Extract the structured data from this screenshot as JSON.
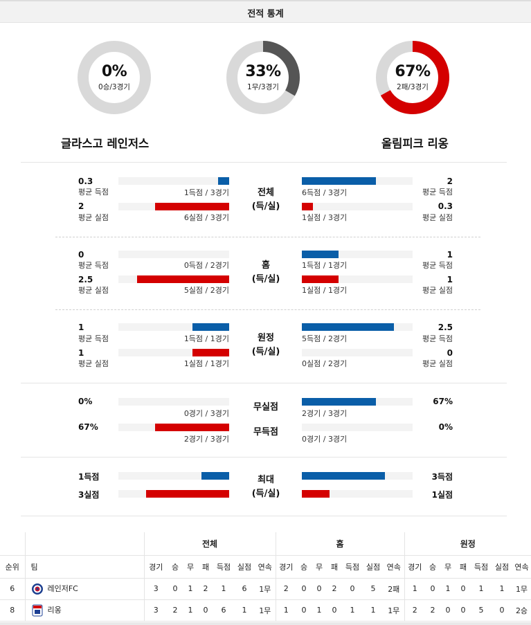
{
  "header": {
    "title": "전적 통계"
  },
  "donuts": [
    {
      "pct": "0%",
      "sub": "0승/3경기",
      "value": 0,
      "color": "#555555"
    },
    {
      "pct": "33%",
      "sub": "1무/3경기",
      "value": 0.333,
      "color": "#555555"
    },
    {
      "pct": "67%",
      "sub": "2패/3경기",
      "value": 0.667,
      "color": "#d40000"
    }
  ],
  "teams": {
    "home": "글라스고 레인저스",
    "away": "올림피크 리옹"
  },
  "colors": {
    "blue": "#0a5ea8",
    "red": "#d40000",
    "track": "#f3f3f3",
    "ring": "#d9d9d9"
  },
  "stats": {
    "overall": {
      "mid": [
        "전체",
        "(득/실)"
      ],
      "left": [
        {
          "val": "0.3",
          "sub": "평균 득점",
          "count": "1득점 / 3경기",
          "fill": 0.1,
          "color": "blue"
        },
        {
          "val": "2",
          "sub": "평균 실점",
          "count": "6실점 / 3경기",
          "fill": 0.67,
          "color": "red"
        }
      ],
      "right": [
        {
          "val": "2",
          "sub": "평균 득점",
          "count": "6득점 / 3경기",
          "fill": 0.67,
          "color": "blue"
        },
        {
          "val": "0.3",
          "sub": "평균 실점",
          "count": "1실점 / 3경기",
          "fill": 0.1,
          "color": "red"
        }
      ]
    },
    "home": {
      "mid": [
        "홈",
        "(득/실)"
      ],
      "left": [
        {
          "val": "0",
          "sub": "평균 득점",
          "count": "0득점 / 2경기",
          "fill": 0,
          "color": "blue"
        },
        {
          "val": "2.5",
          "sub": "평균 실점",
          "count": "5실점 / 2경기",
          "fill": 0.83,
          "color": "red"
        }
      ],
      "right": [
        {
          "val": "1",
          "sub": "평균 득점",
          "count": "1득점 / 1경기",
          "fill": 0.33,
          "color": "blue"
        },
        {
          "val": "1",
          "sub": "평균 실점",
          "count": "1실점 / 1경기",
          "fill": 0.33,
          "color": "red"
        }
      ]
    },
    "away": {
      "mid": [
        "원정",
        "(득/실)"
      ],
      "left": [
        {
          "val": "1",
          "sub": "평균 득점",
          "count": "1득점 / 1경기",
          "fill": 0.33,
          "color": "blue"
        },
        {
          "val": "1",
          "sub": "평균 실점",
          "count": "1실점 / 1경기",
          "fill": 0.33,
          "color": "red"
        }
      ],
      "right": [
        {
          "val": "2.5",
          "sub": "평균 득점",
          "count": "5득점 / 2경기",
          "fill": 0.83,
          "color": "blue"
        },
        {
          "val": "0",
          "sub": "평균 실점",
          "count": "0실점 / 2경기",
          "fill": 0,
          "color": "red"
        }
      ]
    },
    "clean": {
      "left": [
        {
          "val": "0%",
          "count": "0경기 / 3경기",
          "fill": 0,
          "color": "blue"
        },
        {
          "val": "67%",
          "count": "2경기 / 3경기",
          "fill": 0.67,
          "color": "red"
        }
      ],
      "right": [
        {
          "val": "67%",
          "count": "2경기 / 3경기",
          "fill": 0.67,
          "color": "blue"
        },
        {
          "val": "0%",
          "count": "0경기 / 3경기",
          "fill": 0,
          "color": "red"
        }
      ],
      "mid_top": "무실점",
      "mid_bottom": "무득점"
    },
    "max": {
      "mid": [
        "최대",
        "(득/실)"
      ],
      "left": [
        {
          "val": "1득점",
          "fill": 0.25,
          "color": "blue"
        },
        {
          "val": "3실점",
          "fill": 0.75,
          "color": "red"
        }
      ],
      "right": [
        {
          "val": "3득점",
          "fill": 0.75,
          "color": "blue"
        },
        {
          "val": "1실점",
          "fill": 0.25,
          "color": "red"
        }
      ]
    }
  },
  "standings": {
    "groups": [
      "전체",
      "홈",
      "원정"
    ],
    "head_rank": "순위",
    "head_team": "팀",
    "cols": [
      "경기",
      "승",
      "무",
      "패",
      "득점",
      "실점",
      "연속"
    ],
    "rows": [
      {
        "rank": "6",
        "team": "레인저FC",
        "logo": "rangers-crest-icon",
        "all": [
          "3",
          "0",
          "1",
          "2",
          "1",
          "6",
          "1무"
        ],
        "home": [
          "2",
          "0",
          "0",
          "2",
          "0",
          "5",
          "2패"
        ],
        "away": [
          "1",
          "0",
          "1",
          "0",
          "1",
          "1",
          "1무"
        ]
      },
      {
        "rank": "8",
        "team": "리옹",
        "logo": "lyon-crest-icon",
        "all": [
          "3",
          "2",
          "1",
          "0",
          "6",
          "1",
          "1무"
        ],
        "home": [
          "1",
          "0",
          "1",
          "0",
          "1",
          "1",
          "1무"
        ],
        "away": [
          "2",
          "2",
          "0",
          "0",
          "5",
          "0",
          "2승"
        ]
      }
    ]
  }
}
